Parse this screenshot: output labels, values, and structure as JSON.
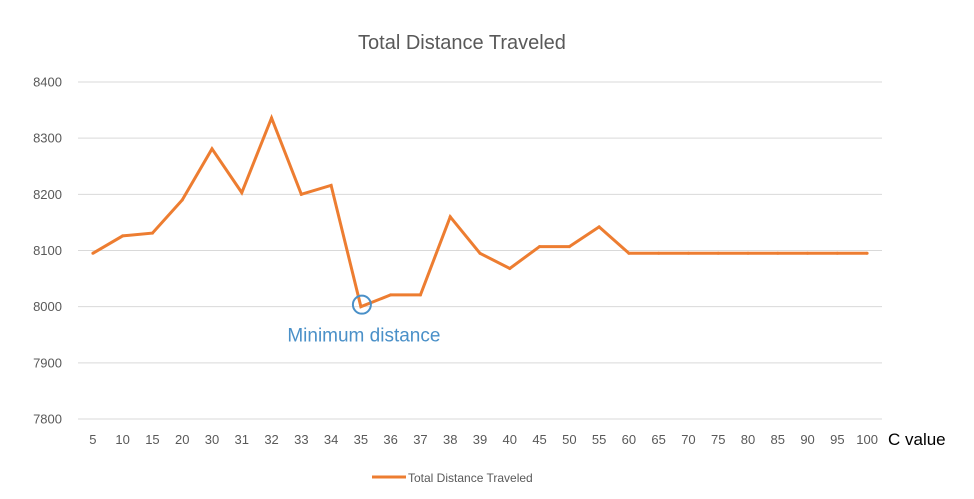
{
  "chart_data": {
    "type": "line",
    "title": "Total Distance Traveled",
    "xlabel": "C value",
    "ylabel": "",
    "categories": [
      "5",
      "10",
      "15",
      "20",
      "30",
      "31",
      "32",
      "33",
      "34",
      "35",
      "36",
      "37",
      "38",
      "39",
      "40",
      "45",
      "50",
      "55",
      "60",
      "65",
      "70",
      "75",
      "80",
      "85",
      "90",
      "95",
      "100"
    ],
    "series": [
      {
        "name": "Total Distance Traveled",
        "color": "#ed7d31",
        "values": [
          8095,
          8126,
          8131,
          8190,
          8281,
          8203,
          8336,
          8200,
          8216,
          8000,
          8021,
          8021,
          8160,
          8095,
          8068,
          8107,
          8107,
          8142,
          8095,
          8095,
          8095,
          8095,
          8095,
          8095,
          8095,
          8095,
          8095
        ]
      }
    ],
    "ylim": [
      7800,
      8400
    ],
    "yticks": [
      "7800",
      "7900",
      "8000",
      "8100",
      "8200",
      "8300",
      "8400"
    ],
    "grid": true,
    "legend": "bottom",
    "annotation": {
      "text": "Minimum distance",
      "category": "35",
      "value": 8000,
      "color": "#4a90c8"
    }
  }
}
